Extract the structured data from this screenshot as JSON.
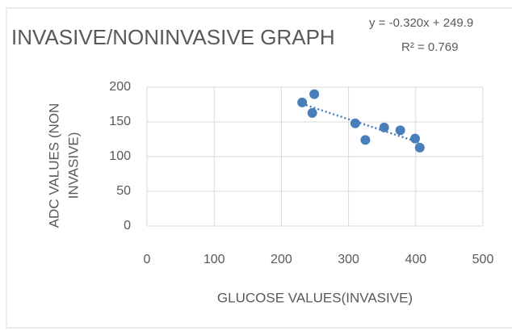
{
  "chart_data": {
    "type": "scatter",
    "title": "INVASIVE/NONINVASIVE  GRAPH",
    "x_label": "GLUCOSE VALUES(INVASIVE)",
    "y_label_lines": [
      "ADC VALUES (NON",
      "INVASIVE)"
    ],
    "series": [
      {
        "name": "ADC",
        "color": "#4a7ebb",
        "x": [
          231,
          249,
          246,
          310,
          325,
          353,
          377,
          399,
          406
        ],
        "values": [
          178,
          190,
          163,
          148,
          124,
          142,
          138,
          126,
          113
        ]
      }
    ],
    "trendline": {
      "slope": -0.32,
      "intercept": 249.9,
      "equation": "y = -0.320x + 249.9",
      "r_squared": "R² = 0.769"
    },
    "xlim": [
      0,
      500
    ],
    "xticks": [
      0,
      100,
      200,
      300,
      400,
      500
    ],
    "ylim": [
      0,
      200
    ],
    "yticks": [
      0,
      50,
      100,
      150,
      200
    ],
    "grid": true
  }
}
